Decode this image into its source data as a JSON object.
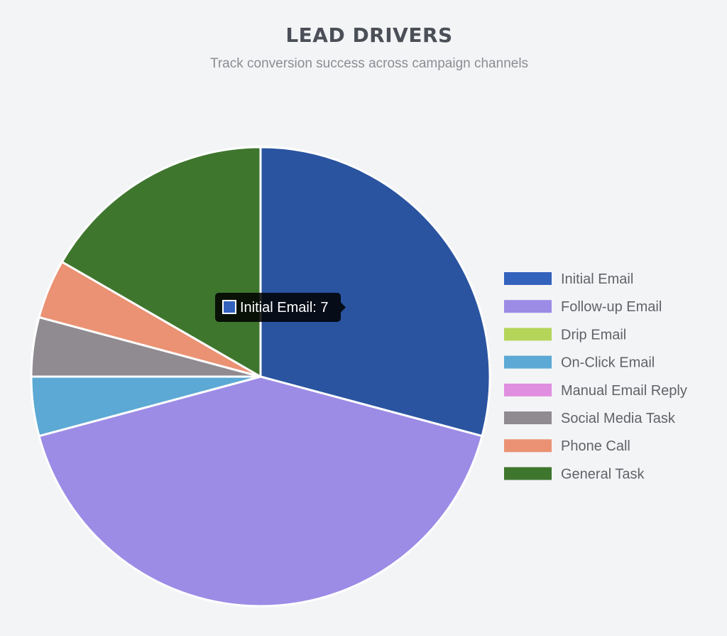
{
  "header": {
    "title": "LEAD DRIVERS",
    "subtitle": "Track conversion success across campaign channels"
  },
  "chart_data": {
    "type": "pie",
    "title": "LEAD DRIVERS",
    "subtitle": "Track conversion success across campaign channels",
    "legend_position": "right",
    "categories": [
      "Initial Email",
      "Follow-up Email",
      "Drip Email",
      "On-Click Email",
      "Manual Email Reply",
      "Social Media Task",
      "Phone Call",
      "General Task"
    ],
    "values": [
      7,
      10,
      0,
      1,
      0,
      1,
      1,
      4
    ],
    "colors": [
      "#2a54a0",
      "#9c8ce6",
      "#b5d55a",
      "#5ba9d4",
      "#e08ee0",
      "#8f8b91",
      "#ea9273",
      "#3f762e"
    ],
    "legend_colors": [
      "#3362bd",
      "#9c8ce6",
      "#b5d55a",
      "#5ba9d4",
      "#e08ee0",
      "#8f8b91",
      "#ea9273",
      "#3f762e"
    ],
    "tooltip": {
      "category": "Initial Email",
      "text": "Initial Email: 7",
      "swatch_color": "#3362bd"
    }
  }
}
